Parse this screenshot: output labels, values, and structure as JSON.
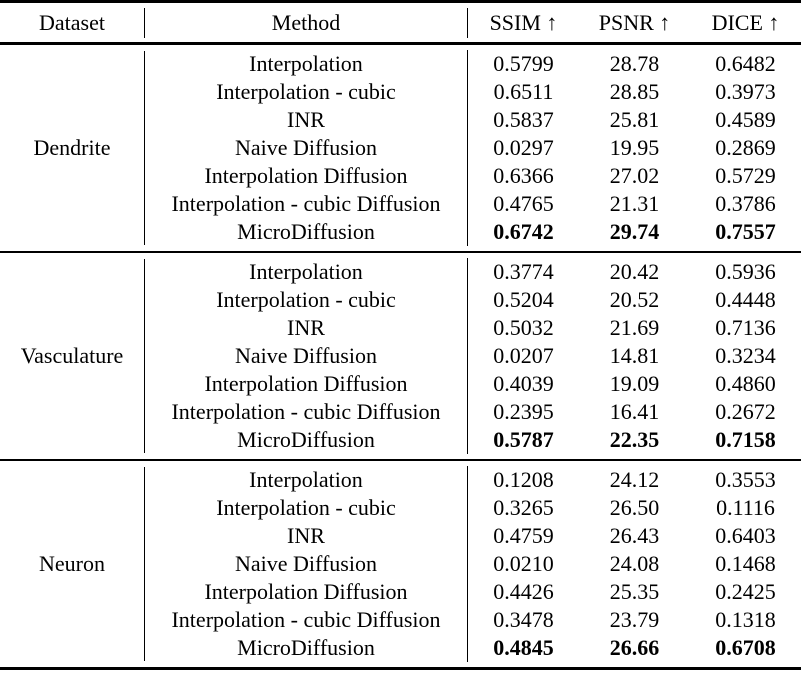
{
  "table": {
    "columns": {
      "dataset": "Dataset",
      "method": "Method",
      "ssim": "SSIM ↑",
      "psnr": "PSNR ↑",
      "dice": "DICE ↑"
    },
    "text_color": "#000000",
    "background_color": "#ffffff",
    "sections": [
      {
        "dataset": "Dendrite",
        "rows": [
          {
            "method": "Interpolation",
            "ssim": "0.5799",
            "psnr": "28.78",
            "dice": "0.6482",
            "bold": false
          },
          {
            "method": "Interpolation - cubic",
            "ssim": "0.6511",
            "psnr": "28.85",
            "dice": "0.3973",
            "bold": false
          },
          {
            "method": "INR",
            "ssim": "0.5837",
            "psnr": "25.81",
            "dice": "0.4589",
            "bold": false
          },
          {
            "method": "Naive Diffusion",
            "ssim": "0.0297",
            "psnr": "19.95",
            "dice": "0.2869",
            "bold": false
          },
          {
            "method": "Interpolation Diffusion",
            "ssim": "0.6366",
            "psnr": "27.02",
            "dice": "0.5729",
            "bold": false
          },
          {
            "method": "Interpolation - cubic Diffusion",
            "ssim": "0.4765",
            "psnr": "21.31",
            "dice": "0.3786",
            "bold": false
          },
          {
            "method": "MicroDiffusion",
            "ssim": "0.6742",
            "psnr": "29.74",
            "dice": "0.7557",
            "bold": true
          }
        ]
      },
      {
        "dataset": "Vasculature",
        "rows": [
          {
            "method": "Interpolation",
            "ssim": "0.3774",
            "psnr": "20.42",
            "dice": "0.5936",
            "bold": false
          },
          {
            "method": "Interpolation - cubic",
            "ssim": "0.5204",
            "psnr": "20.52",
            "dice": "0.4448",
            "bold": false
          },
          {
            "method": "INR",
            "ssim": "0.5032",
            "psnr": "21.69",
            "dice": "0.7136",
            "bold": false
          },
          {
            "method": "Naive Diffusion",
            "ssim": "0.0207",
            "psnr": "14.81",
            "dice": "0.3234",
            "bold": false
          },
          {
            "method": "Interpolation Diffusion",
            "ssim": "0.4039",
            "psnr": "19.09",
            "dice": "0.4860",
            "bold": false
          },
          {
            "method": "Interpolation - cubic Diffusion",
            "ssim": "0.2395",
            "psnr": "16.41",
            "dice": "0.2672",
            "bold": false
          },
          {
            "method": "MicroDiffusion",
            "ssim": "0.5787",
            "psnr": "22.35",
            "dice": "0.7158",
            "bold": true
          }
        ]
      },
      {
        "dataset": "Neuron",
        "rows": [
          {
            "method": "Interpolation",
            "ssim": "0.1208",
            "psnr": "24.12",
            "dice": "0.3553",
            "bold": false
          },
          {
            "method": "Interpolation - cubic",
            "ssim": "0.3265",
            "psnr": "26.50",
            "dice": "0.1116",
            "bold": false
          },
          {
            "method": "INR",
            "ssim": "0.4759",
            "psnr": "26.43",
            "dice": "0.6403",
            "bold": false
          },
          {
            "method": "Naive Diffusion",
            "ssim": "0.0210",
            "psnr": "24.08",
            "dice": "0.1468",
            "bold": false
          },
          {
            "method": "Interpolation Diffusion",
            "ssim": "0.4426",
            "psnr": "25.35",
            "dice": "0.2425",
            "bold": false
          },
          {
            "method": "Interpolation - cubic Diffusion",
            "ssim": "0.3478",
            "psnr": "23.79",
            "dice": "0.1318",
            "bold": false
          },
          {
            "method": "MicroDiffusion",
            "ssim": "0.4845",
            "psnr": "26.66",
            "dice": "0.6708",
            "bold": true
          }
        ]
      }
    ]
  }
}
